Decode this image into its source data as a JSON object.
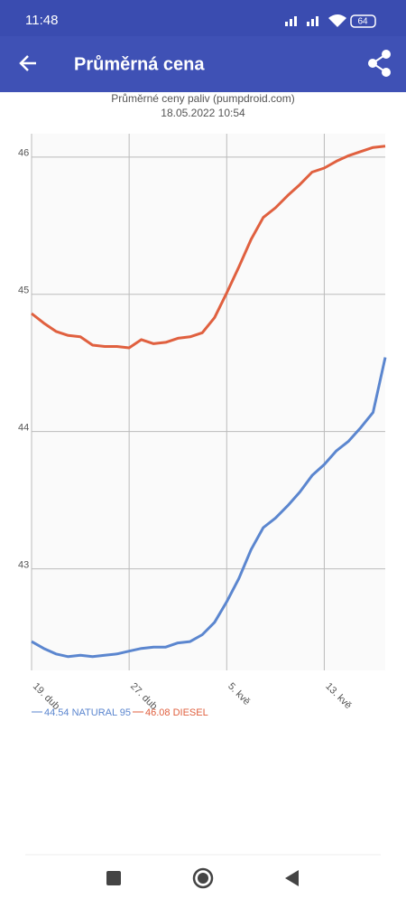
{
  "status_bar": {
    "time": "11:48",
    "battery": "64"
  },
  "app_bar": {
    "title": "Průměrná cena"
  },
  "chart_data": {
    "type": "line",
    "title": "Průměrné ceny paliv (pumpdroid.com)",
    "subtitle": "18.05.2022 10:54",
    "categories": [
      "19. dub",
      null,
      null,
      null,
      null,
      null,
      null,
      null,
      "27. dub",
      null,
      null,
      null,
      null,
      null,
      null,
      null,
      "5. kvě",
      null,
      null,
      null,
      null,
      null,
      null,
      null,
      "13. kvě",
      null,
      null,
      null,
      null,
      null
    ],
    "series": [
      {
        "name": "44.54 NATURAL 95",
        "color": "#5b86cf",
        "values": [
          42.47,
          42.42,
          42.38,
          42.36,
          42.37,
          42.36,
          42.37,
          42.38,
          42.4,
          42.42,
          42.43,
          42.43,
          42.46,
          42.47,
          42.52,
          42.61,
          42.76,
          42.93,
          43.14,
          43.3,
          43.37,
          43.46,
          43.56,
          43.68,
          43.76,
          43.86,
          43.93,
          44.03,
          44.14,
          44.54
        ]
      },
      {
        "name": "46.08 DIESEL",
        "color": "#e0603f",
        "values": [
          44.86,
          44.79,
          44.73,
          44.7,
          44.69,
          44.63,
          44.62,
          44.62,
          44.61,
          44.67,
          44.64,
          44.65,
          44.68,
          44.69,
          44.72,
          44.83,
          45.01,
          45.2,
          45.4,
          45.56,
          45.63,
          45.72,
          45.8,
          45.89,
          45.92,
          45.97,
          46.01,
          46.04,
          46.07,
          46.08
        ]
      }
    ],
    "ylim": [
      42.26,
      46.17
    ],
    "yticks": [
      43,
      44,
      45,
      46
    ],
    "grid": true
  }
}
